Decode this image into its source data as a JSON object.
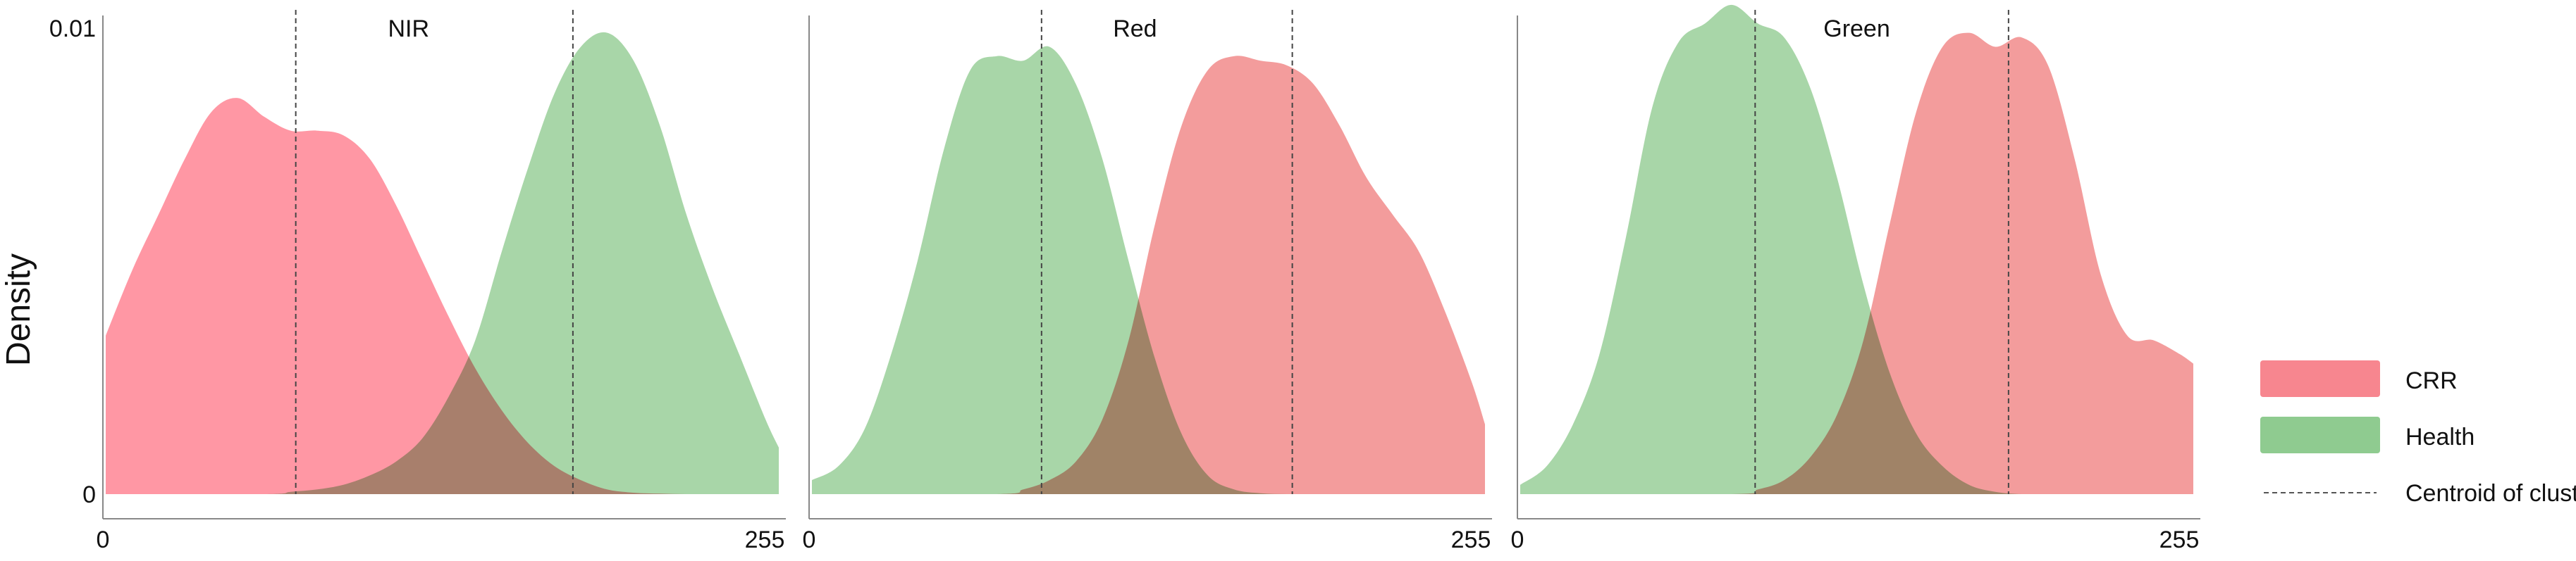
{
  "chart_data": {
    "type": "area",
    "ylabel": "Density",
    "ylim": [
      0,
      0.01
    ],
    "y_ticks": [
      "0.01",
      "0"
    ],
    "x_ticks": [
      "0",
      "255"
    ],
    "xlim": [
      0,
      255
    ],
    "legend": {
      "placement": "right",
      "items": [
        {
          "label": "CRR",
          "color": "#f7868f",
          "kind": "area"
        },
        {
          "label": "Health",
          "color": "#8fcb90",
          "kind": "area"
        },
        {
          "label": "Centroid of cluster",
          "color": "#555555",
          "kind": "dashed-line"
        }
      ]
    },
    "colors": {
      "CRR": "#f7868f",
      "Health": "#8fcb90"
    },
    "panels": [
      {
        "title": "NIR",
        "series": [
          {
            "name": "CRR",
            "color": "#ff7a8a",
            "x": [
              0,
              10,
              20,
              30,
              40,
              50,
              60,
              70,
              80,
              90,
              100,
              110,
              120,
              130,
              140,
              150,
              160,
              170,
              180,
              190,
              200,
              210,
              220,
              230,
              240,
              250,
              255
            ],
            "y": [
              0.0034,
              0.0048,
              0.006,
              0.0072,
              0.0082,
              0.0085,
              0.0081,
              0.0078,
              0.0078,
              0.0077,
              0.0072,
              0.0062,
              0.005,
              0.0038,
              0.0027,
              0.0018,
              0.0011,
              0.0006,
              0.0003,
              0.0001,
              3e-05,
              1e-05,
              0,
              0,
              0,
              0,
              0
            ]
          },
          {
            "name": "Health",
            "color": "#8fcb90",
            "x": [
              0,
              60,
              70,
              80,
              90,
              100,
              110,
              120,
              130,
              140,
              150,
              160,
              170,
              180,
              190,
              200,
              210,
              220,
              230,
              240,
              250,
              255
            ],
            "y": [
              0,
              0,
              5e-05,
              0.0001,
              0.0002,
              0.0004,
              0.0007,
              0.0012,
              0.0021,
              0.0033,
              0.0052,
              0.007,
              0.0086,
              0.0096,
              0.0099,
              0.0093,
              0.0079,
              0.006,
              0.0044,
              0.003,
              0.0016,
              0.001
            ]
          }
        ],
        "centroids": [
          {
            "series": "CRR",
            "x": 72
          },
          {
            "series": "Health",
            "x": 177
          }
        ]
      },
      {
        "title": "Red",
        "series": [
          {
            "name": "Health",
            "color": "#8fcb90",
            "x": [
              0,
              10,
              20,
              30,
              40,
              50,
              60,
              70,
              80,
              90,
              100,
              110,
              120,
              130,
              140,
              150,
              160,
              170,
              180,
              190,
              200,
              210,
              220,
              230,
              240,
              250,
              255
            ],
            "y": [
              0.0003,
              0.0006,
              0.0014,
              0.003,
              0.005,
              0.0074,
              0.0091,
              0.0094,
              0.0093,
              0.0096,
              0.0088,
              0.0072,
              0.005,
              0.0029,
              0.0013,
              0.0004,
              0.0001,
              2e-05,
              0,
              0,
              0,
              0,
              0,
              0,
              0,
              0,
              0
            ]
          },
          {
            "name": "CRR",
            "color": "#f08080",
            "x": [
              0,
              70,
              80,
              90,
              100,
              110,
              120,
              130,
              140,
              150,
              160,
              170,
              180,
              190,
              200,
              210,
              220,
              230,
              240,
              250,
              255
            ],
            "y": [
              0,
              0,
              0.0001,
              0.0003,
              0.0007,
              0.0016,
              0.0033,
              0.0058,
              0.0079,
              0.0091,
              0.0094,
              0.0093,
              0.0092,
              0.0088,
              0.0079,
              0.0068,
              0.006,
              0.0052,
              0.0039,
              0.0024,
              0.0015
            ]
          }
        ],
        "centroids": [
          {
            "series": "Health",
            "x": 87
          },
          {
            "series": "CRR",
            "x": 182
          }
        ]
      },
      {
        "title": "Green",
        "series": [
          {
            "name": "Health",
            "color": "#8fcb90",
            "x": [
              0,
              10,
              20,
              30,
              40,
              50,
              60,
              70,
              80,
              90,
              100,
              110,
              120,
              130,
              140,
              150,
              160,
              170,
              180,
              190,
              200,
              210,
              220,
              230,
              240,
              250,
              255
            ],
            "y": [
              0.0002,
              0.0006,
              0.0015,
              0.003,
              0.0055,
              0.0083,
              0.0097,
              0.0101,
              0.0105,
              0.0101,
              0.0098,
              0.0087,
              0.0068,
              0.0045,
              0.0026,
              0.0013,
              0.0006,
              0.0002,
              5e-05,
              0,
              0,
              0,
              0,
              0,
              0,
              0,
              0
            ]
          },
          {
            "name": "CRR",
            "color": "#f08080",
            "x": [
              0,
              80,
              90,
              100,
              110,
              120,
              130,
              140,
              150,
              160,
              170,
              180,
              190,
              200,
              210,
              220,
              230,
              240,
              250,
              255
            ],
            "y": [
              0,
              0,
              0.0001,
              0.0003,
              0.0008,
              0.0017,
              0.0033,
              0.0058,
              0.0082,
              0.0096,
              0.0099,
              0.0096,
              0.0098,
              0.0092,
              0.0072,
              0.0047,
              0.0034,
              0.0033,
              0.003,
              0.0028
            ]
          }
        ],
        "centroids": [
          {
            "series": "Health",
            "x": 89
          },
          {
            "series": "CRR",
            "x": 185
          }
        ]
      }
    ]
  }
}
